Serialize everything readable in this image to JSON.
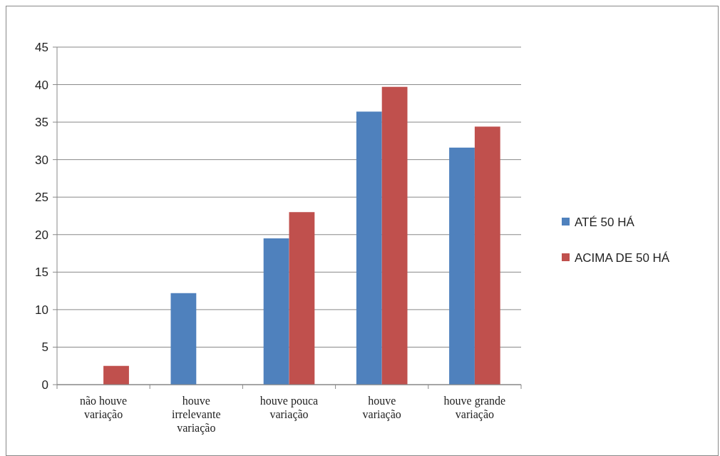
{
  "chart_data": {
    "type": "bar",
    "categories": [
      "não houve variação",
      "houve irrelevante variação",
      "houve pouca variação",
      "houve variação",
      "houve grande variação"
    ],
    "series": [
      {
        "name": "ATÉ 50 HÁ",
        "color": "#4f81bd",
        "values": [
          0,
          12.2,
          19.5,
          36.4,
          31.6
        ]
      },
      {
        "name": "ACIMA DE 50 HÁ",
        "color": "#c0504d",
        "values": [
          2.5,
          0,
          23.0,
          39.7,
          34.4
        ]
      }
    ],
    "ylim": [
      0,
      45
    ],
    "yticks": [
      0,
      5,
      10,
      15,
      20,
      25,
      30,
      35,
      40,
      45
    ],
    "grid": "y",
    "legend": "right"
  }
}
